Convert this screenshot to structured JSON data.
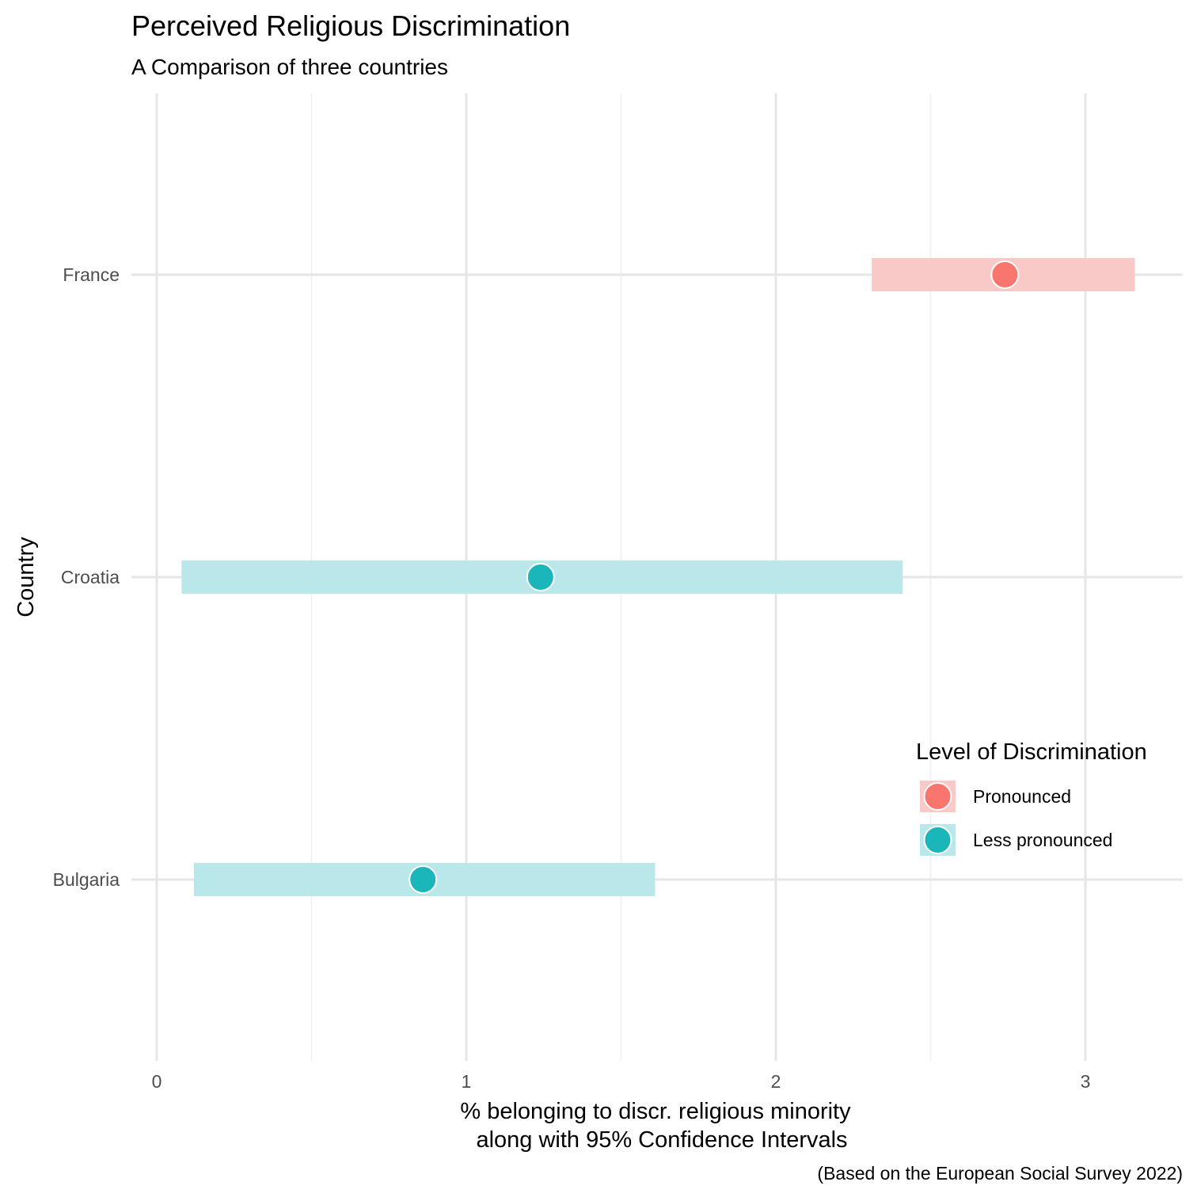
{
  "chart_data": {
    "type": "scatter",
    "title": "Perceived Religious Discrimination",
    "subtitle": "A Comparison of three countries",
    "xlabel_lines": [
      "% belonging to discr. religious minority",
      "along with 95% Confidence Intervals"
    ],
    "ylabel": "Country",
    "caption": "(Based on the European Social Survey 2022)",
    "xlim": [
      -0.08,
      3.3
    ],
    "xticks": [
      0,
      1,
      2,
      3
    ],
    "xtick_labels": [
      "0",
      "1",
      "2",
      "3"
    ],
    "x_minor_gridlines": [
      0.5,
      1.5,
      2.5
    ],
    "grid": true,
    "categories": [
      "France",
      "Croatia",
      "Bulgaria"
    ],
    "points": [
      {
        "country": "France",
        "value": 2.74,
        "ci_low": 2.31,
        "ci_high": 3.16,
        "level": "Pronounced"
      },
      {
        "country": "Croatia",
        "value": 1.24,
        "ci_low": 0.08,
        "ci_high": 2.41,
        "level": "Less pronounced"
      },
      {
        "country": "Bulgaria",
        "value": 0.86,
        "ci_low": 0.12,
        "ci_high": 1.61,
        "level": "Less pronounced"
      }
    ],
    "legend": {
      "title": "Level of Discrimination",
      "position": "bottom-right",
      "entries": [
        {
          "label": "Pronounced",
          "color": "#F8766D",
          "band_color": "#F8C9C6"
        },
        {
          "label": "Less pronounced",
          "color": "#1AB6B9",
          "band_color": "#B9E7EA"
        }
      ]
    },
    "colors": {
      "Pronounced": "#F8766D",
      "Less pronounced": "#1AB6B9",
      "Pronounced_band": "#F8C9C6",
      "Less pronounced_band": "#B9E7EA",
      "grid_major": "#E6E6E6",
      "grid_minor": "#F0F0F0"
    }
  }
}
